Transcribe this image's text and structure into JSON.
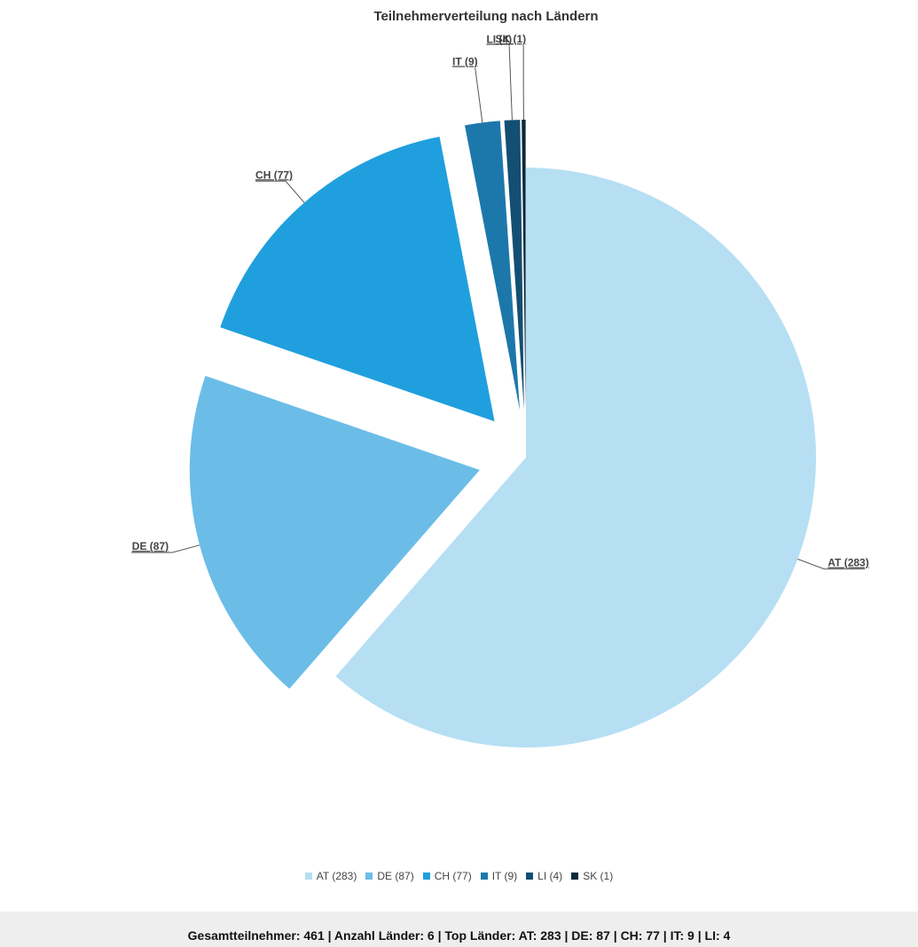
{
  "chart_data": {
    "type": "pie",
    "title": "Teilnehmerverteilung nach Ländern",
    "categories": [
      "AT",
      "DE",
      "CH",
      "IT",
      "LI",
      "SK"
    ],
    "values": [
      283,
      87,
      77,
      9,
      4,
      1
    ],
    "labels": [
      "AT (283)",
      "DE (87)",
      "CH (77)",
      "IT (9)",
      "LI (4)",
      "SK (1)"
    ],
    "colors": [
      "#b6dff4",
      "#6bbde8",
      "#209fde",
      "#1c78ab",
      "#134f73",
      "#0a2a3d"
    ],
    "exploded": [
      false,
      true,
      true,
      true,
      true,
      true
    ],
    "legend_position": "bottom"
  },
  "legend": {
    "items": [
      "AT (283)",
      "DE (87)",
      "CH (77)",
      "IT (9)",
      "LI (4)",
      "SK (1)"
    ]
  },
  "summary": {
    "text": "Gesamtteilnehmer: 461 | Anzahl Länder: 6 | Top Länder: AT: 283 | DE: 87 | CH: 77 | IT: 9 | LI: 4"
  }
}
